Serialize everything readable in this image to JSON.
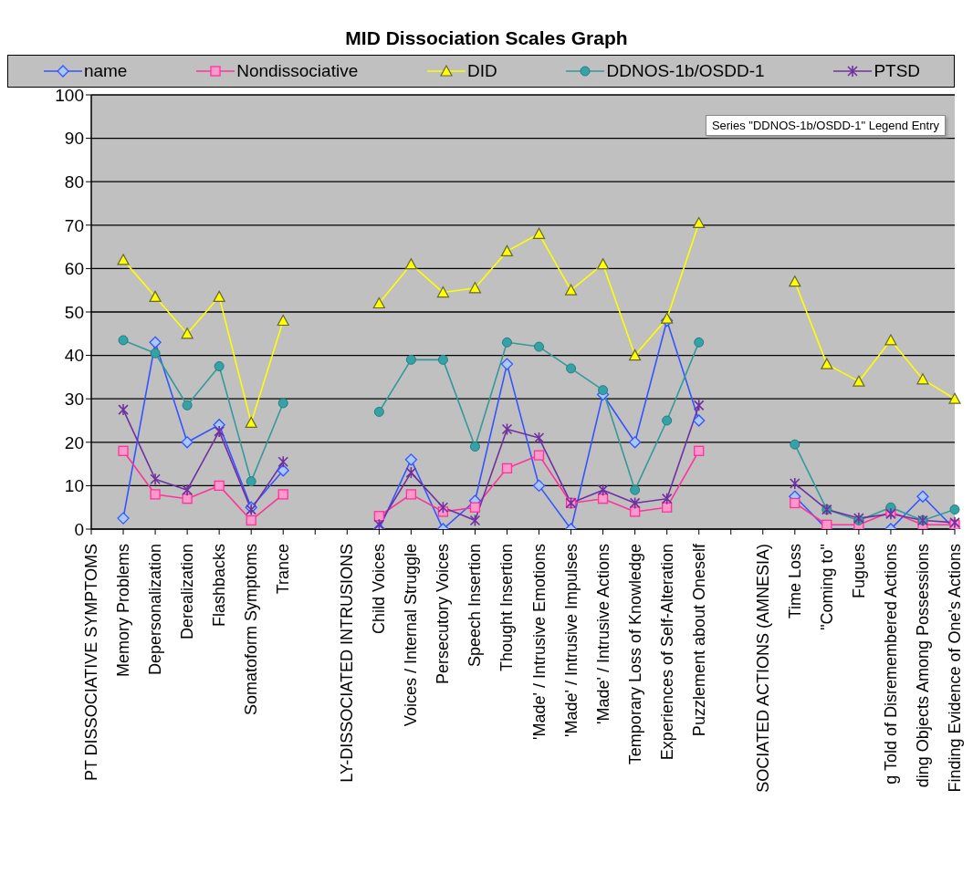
{
  "chart_data": {
    "type": "line",
    "title": "MID Dissociation Scales Graph",
    "categories": [
      "PT DISSOCIATIVE SYMPTOMS",
      "Memory Problems",
      "Depersonalization",
      "Derealization",
      "Flashbacks",
      "Somatoform Symptoms",
      "Trance",
      null,
      "LY-DISSOCIATED INTRUSIONS",
      "Child Voices",
      "Voices / Internal Struggle",
      "Persecutory Voices",
      "Speech Insertion",
      "Thought Insertion",
      "'Made' / Intrusive Emotions",
      "'Made' / Intrusive Impulses",
      "'Made' / Intrusive Actions",
      "Temporary Loss of Knowledge",
      "Experiences of Self-Alteration",
      "Puzzlement about Oneself",
      null,
      "SOCIATED ACTIONS (AMNESIA)",
      "Time Loss",
      "\"Coming to\"",
      "Fugues",
      "g Told of Disremembered Actions",
      "ding Objects Among Possessions",
      "Finding Evidence of One's Actions"
    ],
    "series": [
      {
        "name": "name",
        "color": "#3355ff",
        "marker": "diamond",
        "values": [
          null,
          2.5,
          43,
          20,
          24,
          5,
          13.5,
          null,
          null,
          0,
          16,
          0,
          6.5,
          38,
          10,
          0,
          31,
          20,
          48,
          25,
          null,
          null,
          7.5,
          0,
          0,
          0,
          7.5,
          0
        ]
      },
      {
        "name": "Nondissociative",
        "color": "#ff3399",
        "marker": "square",
        "values": [
          null,
          18,
          8,
          7,
          10,
          2,
          8,
          null,
          null,
          3,
          8,
          4,
          5,
          14,
          17,
          6,
          7,
          4,
          5,
          18,
          null,
          null,
          6,
          1,
          1,
          4,
          1,
          1
        ]
      },
      {
        "name": "DID",
        "color": "#ffff00",
        "marker": "triangle",
        "values": [
          null,
          62,
          53.5,
          45,
          53.5,
          24.5,
          48,
          null,
          null,
          52,
          61,
          54.5,
          55.5,
          64,
          68,
          55,
          61,
          40,
          48.5,
          70.5,
          null,
          null,
          57,
          38,
          34,
          43.5,
          34.5,
          30
        ]
      },
      {
        "name": "DDNOS-1b/OSDD-1",
        "color": "#339999",
        "marker": "circle",
        "values": [
          null,
          43.5,
          40.5,
          28.5,
          37.5,
          11,
          29,
          null,
          null,
          27,
          39,
          39,
          19,
          43,
          42,
          37,
          32,
          9,
          25,
          43,
          null,
          null,
          19.5,
          4.5,
          2,
          5,
          2,
          4.5
        ]
      },
      {
        "name": "PTSD",
        "color": "#7030a0",
        "marker": "cross",
        "values": [
          null,
          27.5,
          11.5,
          9,
          22.5,
          4.5,
          15.5,
          null,
          null,
          1,
          13,
          5,
          2,
          23,
          21,
          6,
          9,
          6,
          7,
          28.5,
          null,
          null,
          10.5,
          4.5,
          2.5,
          3.5,
          2,
          1.5
        ]
      }
    ],
    "ylim": [
      0,
      100
    ],
    "yticks": [
      0,
      10,
      20,
      30,
      40,
      50,
      60,
      70,
      80,
      90,
      100
    ],
    "grid": "y",
    "legend": "top",
    "line_style": "solid",
    "annotations": [
      "Series \"DDNOS-1b/OSDD-1\" Legend Entry"
    ]
  }
}
